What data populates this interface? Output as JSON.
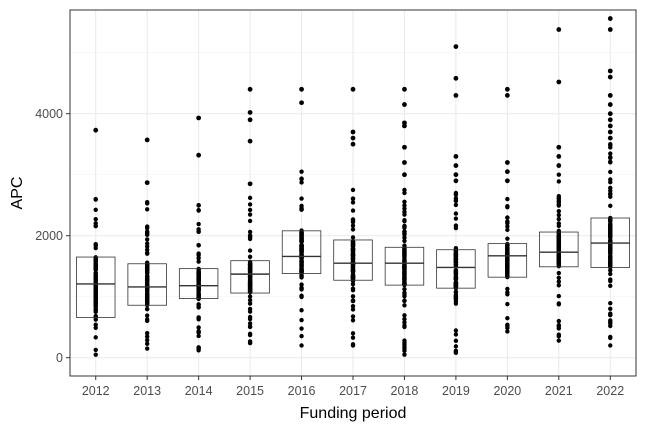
{
  "chart_data": {
    "type": "boxplot",
    "xlabel": "Funding period",
    "ylabel": "APC",
    "ylim": [
      -300,
      5700
    ],
    "yticks": [
      0,
      2000,
      4000
    ],
    "grid": true,
    "legend": "none",
    "colors": {
      "box_fill": "#ffffff",
      "box_stroke": "#333333",
      "points": "#000000",
      "grid_major": "#ebebeb",
      "panel_border": "#333333"
    },
    "categories": [
      "2012",
      "2013",
      "2014",
      "2015",
      "2016",
      "2017",
      "2018",
      "2019",
      "2020",
      "2021",
      "2022"
    ],
    "boxes": [
      {
        "category": "2012",
        "q1": 660,
        "median": 1210,
        "q3": 1650,
        "min": 50,
        "max": 2600
      },
      {
        "category": "2013",
        "q1": 860,
        "median": 1160,
        "q3": 1540,
        "min": 150,
        "max": 2550
      },
      {
        "category": "2014",
        "q1": 970,
        "median": 1180,
        "q3": 1460,
        "min": 120,
        "max": 2500
      },
      {
        "category": "2015",
        "q1": 1060,
        "median": 1370,
        "q3": 1590,
        "min": 240,
        "max": 2620
      },
      {
        "category": "2016",
        "q1": 1380,
        "median": 1660,
        "q3": 2080,
        "min": 200,
        "max": 3050
      },
      {
        "category": "2017",
        "q1": 1270,
        "median": 1550,
        "q3": 1930,
        "min": 200,
        "max": 2750
      },
      {
        "category": "2018",
        "q1": 1190,
        "median": 1550,
        "q3": 1810,
        "min": 50,
        "max": 2750
      },
      {
        "category": "2019",
        "q1": 1140,
        "median": 1480,
        "q3": 1770,
        "min": 80,
        "max": 2700
      },
      {
        "category": "2020",
        "q1": 1320,
        "median": 1670,
        "q3": 1870,
        "min": 430,
        "max": 2600
      },
      {
        "category": "2021",
        "q1": 1490,
        "median": 1730,
        "q3": 2060,
        "min": 280,
        "max": 3000
      },
      {
        "category": "2022",
        "q1": 1480,
        "median": 1880,
        "q3": 2290,
        "min": 200,
        "max": 3500
      }
    ],
    "outliers": [
      {
        "category": "2012",
        "values": [
          3730
        ]
      },
      {
        "category": "2013",
        "values": [
          2870,
          3570
        ]
      },
      {
        "category": "2014",
        "values": [
          3320,
          3930
        ]
      },
      {
        "category": "2015",
        "values": [
          2850,
          3550,
          3900,
          4020,
          4400
        ]
      },
      {
        "category": "2016",
        "values": [
          4180,
          4400
        ]
      },
      {
        "category": "2017",
        "values": [
          3500,
          3600,
          3700,
          4400
        ]
      },
      {
        "category": "2018",
        "values": [
          3000,
          3200,
          3450,
          3800,
          3850,
          4150,
          4400
        ]
      },
      {
        "category": "2019",
        "values": [
          2900,
          3000,
          3150,
          3300,
          4300,
          4580,
          5100
        ]
      },
      {
        "category": "2020",
        "values": [
          2900,
          3050,
          3200,
          4300,
          4400
        ]
      },
      {
        "category": "2021",
        "values": [
          3150,
          3300,
          3450,
          4520,
          5380
        ]
      },
      {
        "category": "2022",
        "values": [
          3600,
          3700,
          3800,
          3900,
          4000,
          4150,
          4300,
          4600,
          4700,
          5380,
          5560
        ]
      }
    ]
  }
}
